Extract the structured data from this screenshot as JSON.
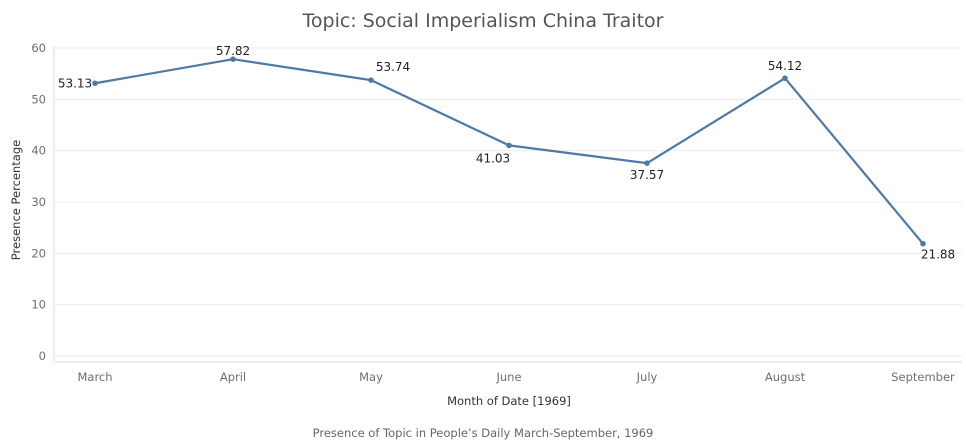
{
  "chart_data": {
    "type": "line",
    "title": "Topic: Social Imperialism China Traitor",
    "xlabel": "Month of Date [1969]",
    "ylabel": "Presence Percentage",
    "categories": [
      "March",
      "April",
      "May",
      "June",
      "July",
      "August",
      "September"
    ],
    "series": [
      {
        "values": [
          53.13,
          57.82,
          53.74,
          41.03,
          37.57,
          54.12,
          21.88
        ]
      }
    ],
    "data_labels": [
      "53.13",
      "57.82",
      "53.74",
      "41.03",
      "37.57",
      "54.12",
      "21.88"
    ],
    "ylim": [
      0,
      60
    ],
    "yticks": [
      0,
      10,
      20,
      30,
      40,
      50,
      60
    ],
    "ytick_labels": [
      "0",
      "10",
      "20",
      "30",
      "40",
      "50",
      "60"
    ],
    "grid": true,
    "legend": "none",
    "line_color": "#4e79a7",
    "caption": "Presence of Topic in People’s Daily March-September, 1969"
  }
}
